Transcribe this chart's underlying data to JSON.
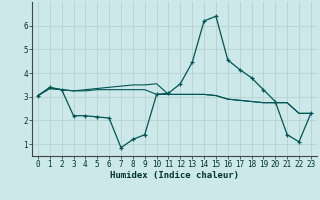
{
  "xlabel": "Humidex (Indice chaleur)",
  "bg_color": "#cce8e8",
  "grid_color": "#b8d4d4",
  "line_color": "#005555",
  "xlim": [
    -0.5,
    23.5
  ],
  "ylim": [
    0.5,
    7.0
  ],
  "yticks": [
    1,
    2,
    3,
    4,
    5,
    6
  ],
  "xticks": [
    0,
    1,
    2,
    3,
    4,
    5,
    6,
    7,
    8,
    9,
    10,
    11,
    12,
    13,
    14,
    15,
    16,
    17,
    18,
    19,
    20,
    21,
    22,
    23
  ],
  "series1_x": [
    0,
    1,
    2,
    3,
    4,
    5,
    6,
    7,
    8,
    9,
    10,
    11,
    12,
    13,
    14,
    15,
    16,
    17,
    18,
    19,
    20,
    21,
    22,
    23
  ],
  "series1_y": [
    3.05,
    3.4,
    3.3,
    2.2,
    2.2,
    2.15,
    2.1,
    0.85,
    1.2,
    1.4,
    3.1,
    3.15,
    3.55,
    4.45,
    6.2,
    6.4,
    4.55,
    4.15,
    3.8,
    3.3,
    2.8,
    1.4,
    1.1,
    2.3
  ],
  "series2_x": [
    0,
    1,
    2,
    3,
    4,
    5,
    6,
    7,
    8,
    9,
    10,
    11,
    12,
    13,
    14,
    15,
    16,
    17,
    18,
    19,
    20,
    21,
    22,
    23
  ],
  "series2_y": [
    3.05,
    3.35,
    3.3,
    3.25,
    3.25,
    3.3,
    3.3,
    3.3,
    3.3,
    3.3,
    3.1,
    3.1,
    3.1,
    3.1,
    3.1,
    3.05,
    2.9,
    2.85,
    2.8,
    2.75,
    2.75,
    2.75,
    2.3,
    2.3
  ],
  "series3_x": [
    0,
    1,
    2,
    3,
    4,
    5,
    6,
    7,
    8,
    9,
    10,
    11,
    12,
    13,
    14,
    15,
    16,
    17,
    18,
    19,
    20,
    21,
    22,
    23
  ],
  "series3_y": [
    3.05,
    3.35,
    3.3,
    3.25,
    3.3,
    3.35,
    3.4,
    3.45,
    3.5,
    3.5,
    3.55,
    3.1,
    3.1,
    3.1,
    3.1,
    3.05,
    2.9,
    2.85,
    2.8,
    2.75,
    2.75,
    2.75,
    2.3,
    2.3
  ]
}
